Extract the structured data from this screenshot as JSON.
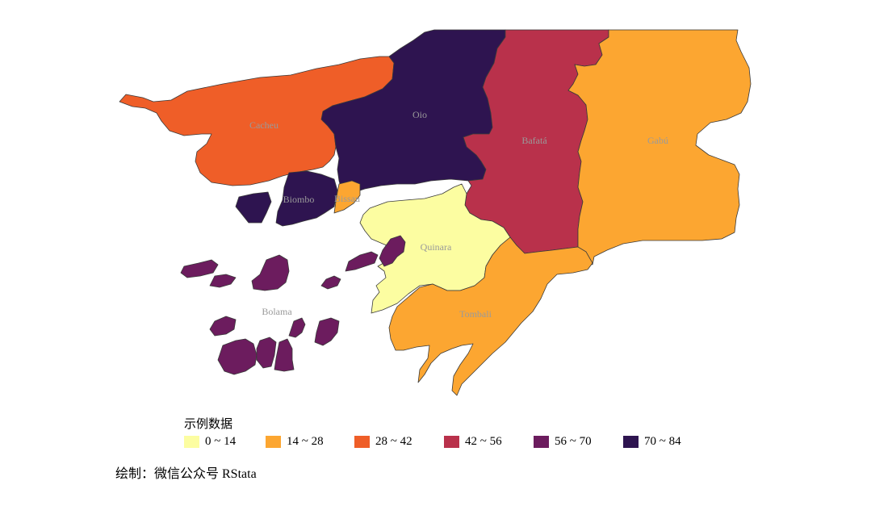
{
  "legend": {
    "title": "示例数据",
    "items": [
      {
        "label": "0 ~ 14",
        "color": "#fcfda1"
      },
      {
        "label": "14 ~ 28",
        "color": "#fca631"
      },
      {
        "label": "28 ~ 42",
        "color": "#ef5e28"
      },
      {
        "label": "42 ~ 56",
        "color": "#b9314b"
      },
      {
        "label": "56 ~ 70",
        "color": "#6c1c5e"
      },
      {
        "label": "70 ~ 84",
        "color": "#2e1450"
      }
    ]
  },
  "regions": [
    {
      "name": "Cacheu",
      "class": "28 ~ 42",
      "color": "#ef5e28"
    },
    {
      "name": "Oio",
      "class": "70 ~ 84",
      "color": "#2e1450"
    },
    {
      "name": "Bafatá",
      "class": "42 ~ 56",
      "color": "#b9314b"
    },
    {
      "name": "Gabú",
      "class": "14 ~ 28",
      "color": "#fca631"
    },
    {
      "name": "Biombo",
      "class": "70 ~ 84",
      "color": "#2e1450"
    },
    {
      "name": "Bissau",
      "class": "14 ~ 28",
      "color": "#fca631"
    },
    {
      "name": "Quinara",
      "class": "0 ~ 14",
      "color": "#fcfda1"
    },
    {
      "name": "Bolama",
      "class": "56 ~ 70",
      "color": "#6c1c5e"
    },
    {
      "name": "Tombali",
      "class": "14 ~ 28",
      "color": "#fca631"
    }
  ],
  "caption": "绘制：微信公众号 RStata"
}
